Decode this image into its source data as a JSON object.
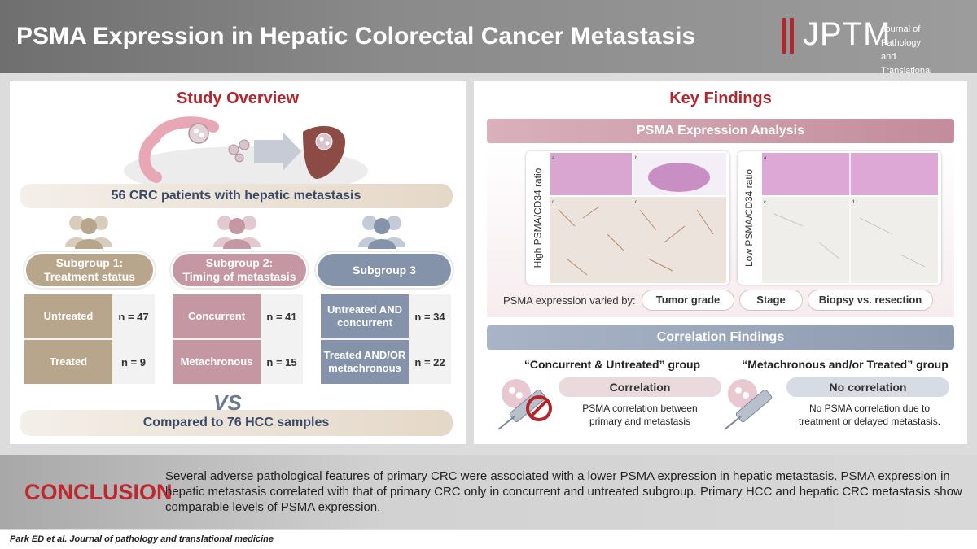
{
  "header": {
    "title": "PSMA Expression in Hepatic Colorectal Cancer Metastasis",
    "logo_word": "JPTM",
    "logo_sub_line1": "Journal of Pathology and",
    "logo_sub_line2": "Translational Medicine"
  },
  "overview": {
    "title": "Study Overview",
    "patients": "56 CRC patients with hepatic metastasis",
    "vs": "VS",
    "compare": "Compared to 76 HCC samples",
    "subgroups": [
      {
        "label_line1": "Subgroup 1:",
        "label_line2": "Treatment status",
        "color": "#b7a58c",
        "rows": [
          {
            "label": "Untreated",
            "n": "n = 47"
          },
          {
            "label": "Treated",
            "n": "n = 9"
          }
        ]
      },
      {
        "label_line1": "Subgroup 2:",
        "label_line2": "Timing of metastasis",
        "color": "#c597a3",
        "rows": [
          {
            "label": "Concurrent",
            "n": "n = 41"
          },
          {
            "label": "Metachronous",
            "n": "n = 15"
          }
        ]
      },
      {
        "label_line1": "Subgroup 3",
        "label_line2": "",
        "color": "#8593aa",
        "rows": [
          {
            "label_line1": "Untreated AND",
            "label_line2": "concurrent",
            "n": "n = 34"
          },
          {
            "label_line1": "Treated AND/OR",
            "label_line2": "metachronous",
            "n": "n = 22"
          }
        ]
      }
    ]
  },
  "findings": {
    "title": "Key Findings",
    "psma_bar": "PSMA Expression Analysis",
    "high_label": "High PSMA/CD34 ratio",
    "low_label": "Low PSMA/CD34 ratio",
    "varied_by": "PSMA expression varied by:",
    "tags": [
      "Tumor grade",
      "Stage",
      "Biopsy vs. resection"
    ],
    "correlation_bar": "Correlation Findings",
    "groups": [
      {
        "title": "“Concurrent & Untreated” group",
        "result": "Correlation",
        "text_line1": "PSMA correlation between",
        "text_line2": "primary and metastasis"
      },
      {
        "title": "“Metachronous and/or Treated” group",
        "result": "No correlation",
        "text_line1": "No PSMA correlation due to",
        "text_line2": "treatment or delayed metastasis."
      }
    ]
  },
  "conclusion": {
    "label": "CONCLUSION",
    "text": "Several adverse pathological features of primary CRC were associated with a lower PSMA expression in hepatic metastasis. PSMA expression in hepatic metastasis correlated with that of primary CRC only in concurrent and untreated subgroup. Primary HCC and hepatic CRC metastasis show comparable levels of PSMA expression."
  },
  "footer": {
    "citation": "Park ED et al. Journal of pathology and translational medicine"
  },
  "colors": {
    "accent_red": "#b3262d",
    "subgroup1": "#b7a58c",
    "subgroup2": "#c597a3",
    "subgroup3": "#8593aa"
  }
}
